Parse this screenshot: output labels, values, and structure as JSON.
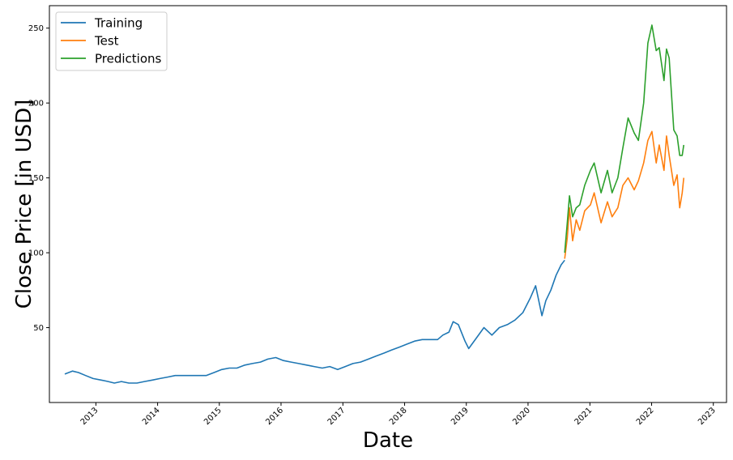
{
  "chart_data": {
    "type": "line",
    "title": "",
    "xlabel": "Date",
    "ylabel": "Close Price [in USD]",
    "x_type": "date",
    "xlim": [
      "2012-04-01",
      "2023-03-20"
    ],
    "ylim": [
      0,
      265
    ],
    "x_ticks": [
      "2013",
      "2014",
      "2015",
      "2016",
      "2017",
      "2018",
      "2019",
      "2020",
      "2021",
      "2022",
      "2023"
    ],
    "y_ticks": [
      50,
      100,
      150,
      200,
      250
    ],
    "grid": false,
    "legend": {
      "placement": "top-left",
      "entries": [
        "Training",
        "Test",
        "Predictions"
      ]
    },
    "colors": {
      "Training": "#1f77b4",
      "Test": "#ff7f0e",
      "Predictions": "#2ca02c"
    },
    "series": [
      {
        "name": "Training",
        "x": [
          "2012-07-01",
          "2012-08-15",
          "2012-09-20",
          "2012-11-01",
          "2012-12-15",
          "2013-02-01",
          "2013-03-15",
          "2013-04-20",
          "2013-06-01",
          "2013-07-15",
          "2013-09-01",
          "2013-10-15",
          "2013-12-01",
          "2014-01-15",
          "2014-03-01",
          "2014-04-15",
          "2014-06-01",
          "2014-07-15",
          "2014-09-01",
          "2014-10-15",
          "2014-12-01",
          "2015-01-15",
          "2015-03-01",
          "2015-04-15",
          "2015-06-01",
          "2015-07-15",
          "2015-09-01",
          "2015-10-15",
          "2015-12-01",
          "2016-01-15",
          "2016-03-01",
          "2016-04-15",
          "2016-06-01",
          "2016-07-15",
          "2016-09-01",
          "2016-10-15",
          "2016-12-01",
          "2017-01-15",
          "2017-03-01",
          "2017-04-15",
          "2017-06-01",
          "2017-07-15",
          "2017-09-01",
          "2017-10-15",
          "2017-12-01",
          "2018-01-15",
          "2018-03-01",
          "2018-04-15",
          "2018-06-01",
          "2018-07-15",
          "2018-08-15",
          "2018-09-20",
          "2018-10-15",
          "2018-11-15",
          "2018-12-24",
          "2019-01-15",
          "2019-03-01",
          "2019-04-15",
          "2019-06-01",
          "2019-07-15",
          "2019-09-01",
          "2019-10-15",
          "2019-12-01",
          "2020-01-15",
          "2020-02-15",
          "2020-03-23",
          "2020-04-15",
          "2020-05-15",
          "2020-06-15",
          "2020-07-15",
          "2020-08-05"
        ],
        "values": [
          19,
          21,
          20,
          18,
          16,
          15,
          14,
          13,
          14,
          13,
          13,
          14,
          15,
          16,
          17,
          18,
          18,
          18,
          18,
          18,
          20,
          22,
          23,
          23,
          25,
          26,
          27,
          29,
          30,
          28,
          27,
          26,
          25,
          24,
          23,
          24,
          22,
          24,
          26,
          27,
          29,
          31,
          33,
          35,
          37,
          39,
          41,
          42,
          42,
          42,
          45,
          47,
          54,
          52,
          41,
          36,
          43,
          50,
          45,
          50,
          52,
          55,
          60,
          70,
          78,
          58,
          68,
          75,
          85,
          92,
          95
        ]
      },
      {
        "name": "Test",
        "x": [
          "2020-08-05",
          "2020-08-20",
          "2020-09-02",
          "2020-09-21",
          "2020-10-12",
          "2020-11-02",
          "2020-12-01",
          "2021-01-04",
          "2021-01-26",
          "2021-03-08",
          "2021-04-15",
          "2021-05-12",
          "2021-06-15",
          "2021-07-15",
          "2021-08-15",
          "2021-09-20",
          "2021-10-15",
          "2021-11-15",
          "2021-12-10",
          "2022-01-03",
          "2022-01-28",
          "2022-02-15",
          "2022-03-15",
          "2022-03-30",
          "2022-04-15",
          "2022-05-12",
          "2022-06-01",
          "2022-06-16",
          "2022-07-01",
          "2022-07-10"
        ],
        "values": [
          96,
          110,
          130,
          108,
          122,
          115,
          128,
          132,
          140,
          120,
          134,
          124,
          130,
          145,
          150,
          142,
          148,
          160,
          175,
          181,
          160,
          172,
          155,
          178,
          165,
          145,
          152,
          130,
          140,
          150
        ]
      },
      {
        "name": "Predictions",
        "x": [
          "2020-08-05",
          "2020-08-20",
          "2020-09-02",
          "2020-09-21",
          "2020-10-12",
          "2020-11-02",
          "2020-12-01",
          "2021-01-04",
          "2021-01-26",
          "2021-03-08",
          "2021-04-15",
          "2021-05-12",
          "2021-06-15",
          "2021-07-15",
          "2021-08-15",
          "2021-09-20",
          "2021-10-15",
          "2021-11-15",
          "2021-12-10",
          "2022-01-03",
          "2022-01-28",
          "2022-02-15",
          "2022-03-15",
          "2022-03-30",
          "2022-04-15",
          "2022-05-12",
          "2022-06-01",
          "2022-06-16",
          "2022-07-01",
          "2022-07-10"
        ],
        "values": [
          100,
          120,
          138,
          124,
          130,
          132,
          145,
          155,
          160,
          140,
          155,
          140,
          150,
          170,
          190,
          180,
          175,
          200,
          240,
          252,
          235,
          237,
          215,
          236,
          230,
          182,
          178,
          165,
          165,
          172
        ]
      }
    ]
  }
}
